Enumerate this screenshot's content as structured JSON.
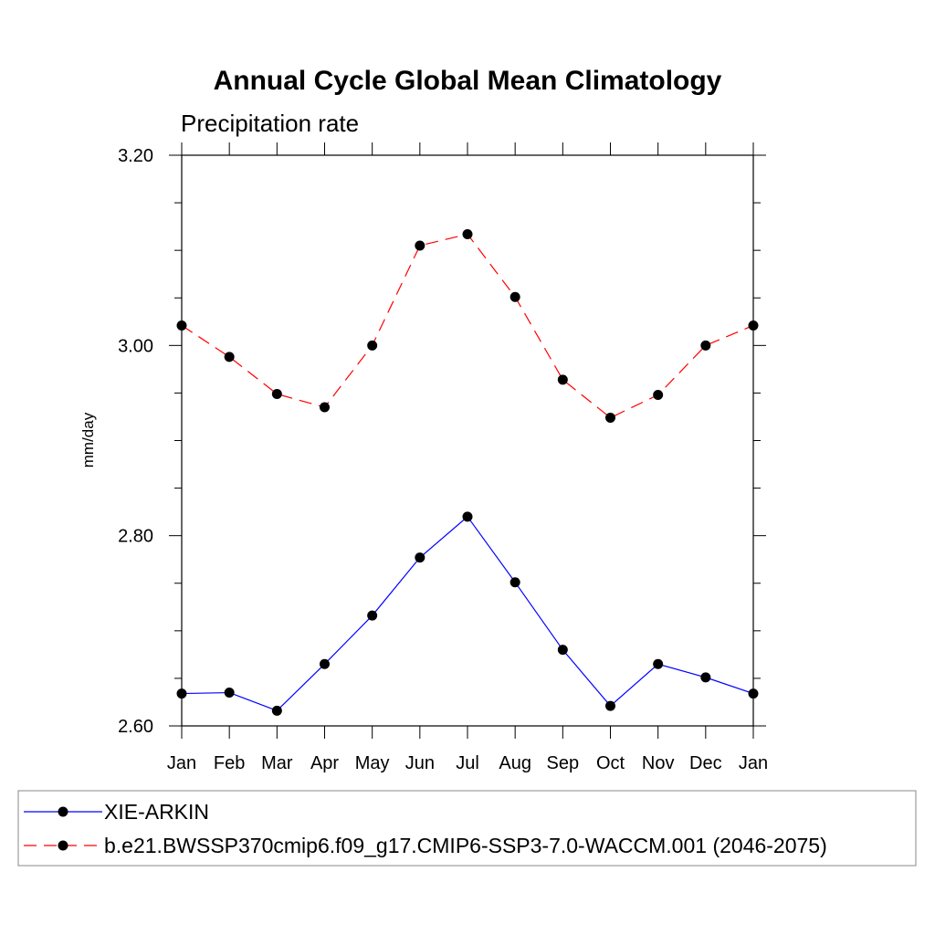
{
  "chart_data": {
    "type": "line",
    "title": "Annual Cycle Global Mean Climatology",
    "subtitle": "Precipitation rate",
    "xlabel": "",
    "ylabel": "mm/day",
    "categories": [
      "Jan",
      "Feb",
      "Mar",
      "Apr",
      "May",
      "Jun",
      "Jul",
      "Aug",
      "Sep",
      "Oct",
      "Nov",
      "Dec",
      "Jan"
    ],
    "ylim": [
      2.6,
      3.2
    ],
    "yticks": [
      2.6,
      2.8,
      3.0,
      3.2
    ],
    "ytick_labels": [
      "2.60",
      "2.80",
      "3.00",
      "3.20"
    ],
    "grid": false,
    "legend_position": "bottom",
    "series": [
      {
        "name": "XIE-ARKIN",
        "color": "#0000ff",
        "line_style": "solid",
        "marker": "filled-circle",
        "values": [
          2.634,
          2.635,
          2.616,
          2.665,
          2.716,
          2.777,
          2.82,
          2.751,
          2.68,
          2.621,
          2.665,
          2.651,
          2.634
        ]
      },
      {
        "name": "b.e21.BWSSP370cmip6.f09_g17.CMIP6-SSP3-7.0-WACCM.001 (2046-2075)",
        "color": "#ff0000",
        "line_style": "dashed",
        "marker": "filled-circle",
        "values": [
          3.021,
          2.988,
          2.949,
          2.935,
          3.0,
          3.105,
          3.117,
          3.051,
          2.964,
          2.924,
          2.948,
          3.0,
          3.021
        ]
      }
    ]
  }
}
